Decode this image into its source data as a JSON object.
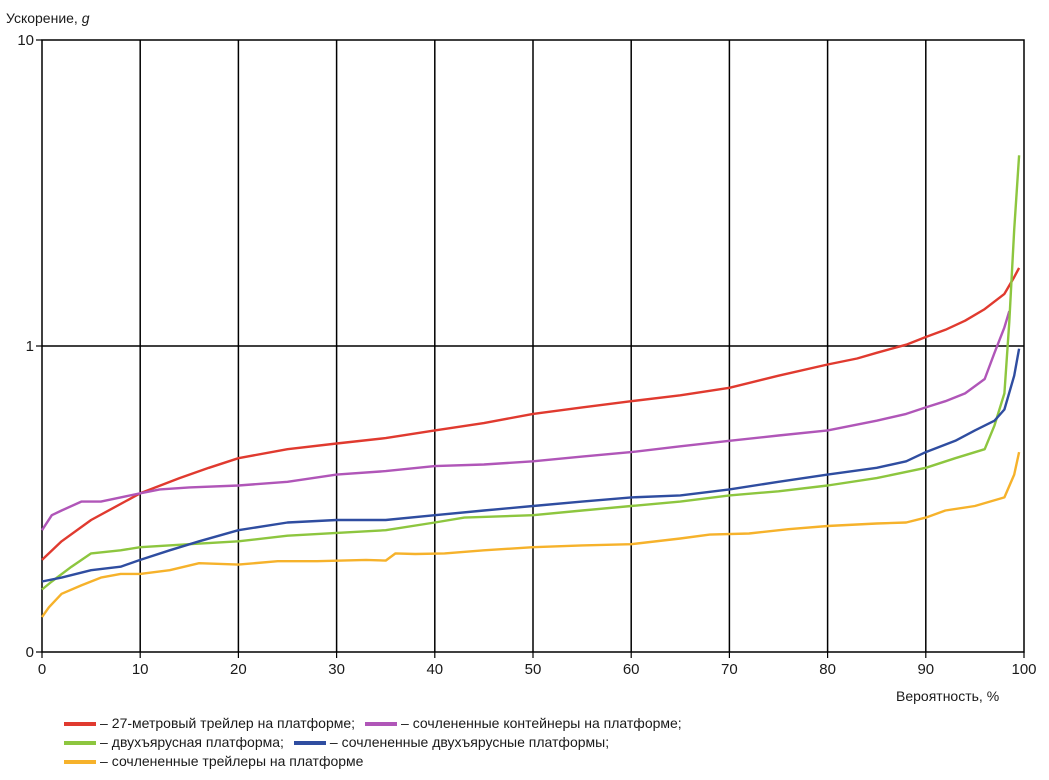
{
  "chart_data": {
    "type": "line",
    "title": "",
    "ylabel": "Ускорение, ",
    "ylabel_var": "g",
    "xlabel": "Вероятность, %",
    "x_ticks": [
      "0",
      "10",
      "20",
      "30",
      "40",
      "50",
      "60",
      "70",
      "80",
      "90",
      "100"
    ],
    "y_ticks": [
      {
        "label": "0",
        "value": 0.1
      },
      {
        "label": "1",
        "value": 1
      },
      {
        "label": "10",
        "value": 10
      }
    ],
    "xlim": [
      0,
      100
    ],
    "ylim": [
      0.1,
      10
    ],
    "y_scale": "log",
    "grid": true,
    "legend_placement": "bottom",
    "legend_dash": "–",
    "series": [
      {
        "name": "27-метровый трейлер на платформе;",
        "color": "#e03a2f",
        "points": [
          [
            0,
            0.2
          ],
          [
            2,
            0.23
          ],
          [
            5,
            0.27
          ],
          [
            10,
            0.33
          ],
          [
            14,
            0.37
          ],
          [
            17,
            0.4
          ],
          [
            20,
            0.43
          ],
          [
            25,
            0.46
          ],
          [
            30,
            0.48
          ],
          [
            35,
            0.5
          ],
          [
            40,
            0.53
          ],
          [
            45,
            0.56
          ],
          [
            50,
            0.6
          ],
          [
            55,
            0.63
          ],
          [
            60,
            0.66
          ],
          [
            65,
            0.69
          ],
          [
            70,
            0.73
          ],
          [
            75,
            0.8
          ],
          [
            80,
            0.87
          ],
          [
            83,
            0.91
          ],
          [
            85,
            0.95
          ],
          [
            88,
            1.01
          ],
          [
            90,
            1.07
          ],
          [
            92,
            1.13
          ],
          [
            94,
            1.21
          ],
          [
            96,
            1.32
          ],
          [
            98,
            1.48
          ],
          [
            99,
            1.68
          ],
          [
            99.5,
            1.8
          ]
        ]
      },
      {
        "name": "сочлененные контейнеры на платформе;",
        "color": "#b056b8",
        "points": [
          [
            0,
            0.25
          ],
          [
            1,
            0.28
          ],
          [
            2,
            0.29
          ],
          [
            4,
            0.31
          ],
          [
            6,
            0.31
          ],
          [
            8,
            0.32
          ],
          [
            10,
            0.33
          ],
          [
            12,
            0.34
          ],
          [
            15,
            0.345
          ],
          [
            20,
            0.35
          ],
          [
            25,
            0.36
          ],
          [
            30,
            0.38
          ],
          [
            35,
            0.39
          ],
          [
            40,
            0.405
          ],
          [
            45,
            0.41
          ],
          [
            50,
            0.42
          ],
          [
            55,
            0.435
          ],
          [
            60,
            0.45
          ],
          [
            65,
            0.47
          ],
          [
            70,
            0.49
          ],
          [
            75,
            0.51
          ],
          [
            80,
            0.53
          ],
          [
            85,
            0.57
          ],
          [
            88,
            0.6
          ],
          [
            90,
            0.63
          ],
          [
            92,
            0.66
          ],
          [
            94,
            0.7
          ],
          [
            96,
            0.78
          ],
          [
            97,
            0.95
          ],
          [
            98,
            1.15
          ],
          [
            98.5,
            1.3
          ]
        ]
      },
      {
        "name": "двухъярусная платформа;",
        "color": "#8dc63f",
        "points": [
          [
            0,
            0.16
          ],
          [
            1,
            0.17
          ],
          [
            3,
            0.19
          ],
          [
            5,
            0.21
          ],
          [
            8,
            0.215
          ],
          [
            10,
            0.22
          ],
          [
            15,
            0.225
          ],
          [
            20,
            0.23
          ],
          [
            25,
            0.24
          ],
          [
            30,
            0.245
          ],
          [
            35,
            0.25
          ],
          [
            40,
            0.265
          ],
          [
            43,
            0.275
          ],
          [
            50,
            0.28
          ],
          [
            55,
            0.29
          ],
          [
            60,
            0.3
          ],
          [
            65,
            0.31
          ],
          [
            70,
            0.325
          ],
          [
            75,
            0.335
          ],
          [
            80,
            0.35
          ],
          [
            85,
            0.37
          ],
          [
            90,
            0.4
          ],
          [
            93,
            0.43
          ],
          [
            96,
            0.46
          ],
          [
            97,
            0.55
          ],
          [
            98,
            0.7
          ],
          [
            98.5,
            1.2
          ],
          [
            99,
            2.4
          ],
          [
            99.5,
            4.2
          ]
        ]
      },
      {
        "name": "сочлененные двухъярусные платформы;",
        "color": "#2f4da0",
        "points": [
          [
            0,
            0.17
          ],
          [
            2,
            0.175
          ],
          [
            5,
            0.185
          ],
          [
            8,
            0.19
          ],
          [
            10,
            0.2
          ],
          [
            13,
            0.215
          ],
          [
            16,
            0.23
          ],
          [
            20,
            0.25
          ],
          [
            25,
            0.265
          ],
          [
            30,
            0.27
          ],
          [
            35,
            0.27
          ],
          [
            40,
            0.28
          ],
          [
            45,
            0.29
          ],
          [
            50,
            0.3
          ],
          [
            55,
            0.31
          ],
          [
            60,
            0.32
          ],
          [
            65,
            0.325
          ],
          [
            70,
            0.34
          ],
          [
            75,
            0.36
          ],
          [
            80,
            0.38
          ],
          [
            85,
            0.4
          ],
          [
            88,
            0.42
          ],
          [
            90,
            0.45
          ],
          [
            93,
            0.49
          ],
          [
            95,
            0.53
          ],
          [
            97,
            0.57
          ],
          [
            98,
            0.62
          ],
          [
            99,
            0.8
          ],
          [
            99.5,
            0.98
          ]
        ]
      },
      {
        "name": "сочлененные трейлеры на платформе",
        "color": "#f6b22b",
        "points": [
          [
            0,
            0.13
          ],
          [
            0.7,
            0.14
          ],
          [
            2,
            0.155
          ],
          [
            4,
            0.165
          ],
          [
            6,
            0.175
          ],
          [
            8,
            0.18
          ],
          [
            10,
            0.18
          ],
          [
            13,
            0.185
          ],
          [
            16,
            0.195
          ],
          [
            20,
            0.193
          ],
          [
            24,
            0.198
          ],
          [
            28,
            0.198
          ],
          [
            33,
            0.2
          ],
          [
            35,
            0.199
          ],
          [
            36,
            0.21
          ],
          [
            38,
            0.209
          ],
          [
            41,
            0.21
          ],
          [
            45,
            0.215
          ],
          [
            50,
            0.22
          ],
          [
            55,
            0.223
          ],
          [
            60,
            0.225
          ],
          [
            65,
            0.235
          ],
          [
            68,
            0.242
          ],
          [
            72,
            0.244
          ],
          [
            76,
            0.252
          ],
          [
            80,
            0.258
          ],
          [
            85,
            0.263
          ],
          [
            88,
            0.265
          ],
          [
            90,
            0.275
          ],
          [
            92,
            0.29
          ],
          [
            95,
            0.3
          ],
          [
            98,
            0.32
          ],
          [
            99,
            0.38
          ],
          [
            99.5,
            0.45
          ]
        ]
      }
    ]
  }
}
